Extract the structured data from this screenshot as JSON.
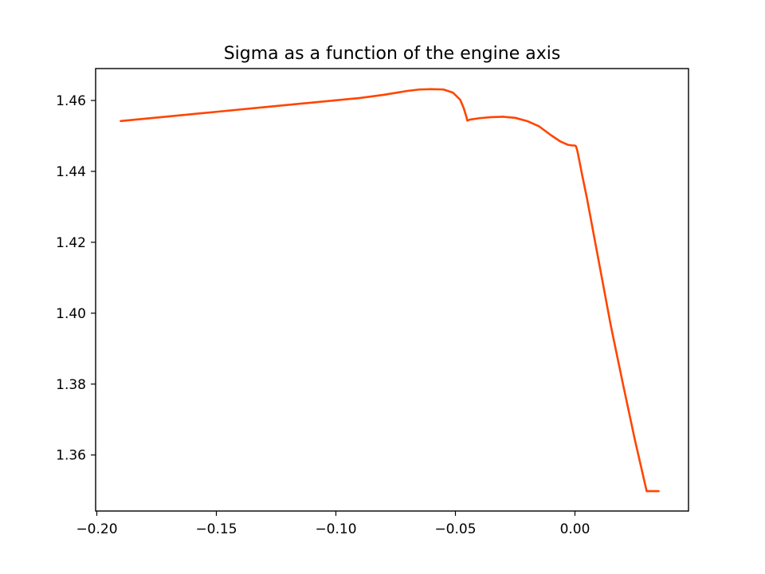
{
  "chart_data": {
    "type": "line",
    "title": "Sigma as a function of the engine axis",
    "xlabel": "",
    "ylabel": "",
    "xlim": [
      -0.2005,
      0.0475
    ],
    "ylim": [
      1.3442,
      1.469
    ],
    "xticks": [
      -0.2,
      -0.15,
      -0.1,
      -0.05,
      0.0
    ],
    "xtick_labels": [
      "−0.20",
      "−0.15",
      "−0.10",
      "−0.05",
      "0.00"
    ],
    "yticks": [
      1.36,
      1.38,
      1.4,
      1.42,
      1.44,
      1.46
    ],
    "ytick_labels": [
      "1.36",
      "1.38",
      "1.40",
      "1.42",
      "1.44",
      "1.46"
    ],
    "grid": false,
    "legend": "none",
    "colors": {
      "line": "#ff4500",
      "axes": "#000000",
      "background": "#ffffff"
    },
    "series": [
      {
        "x": [
          -0.19,
          -0.17,
          -0.15,
          -0.13,
          -0.11,
          -0.09,
          -0.08,
          -0.07,
          -0.065,
          -0.06,
          -0.055,
          -0.051,
          -0.048,
          -0.0465,
          -0.0455,
          -0.045,
          -0.044,
          -0.04,
          -0.035,
          -0.03,
          -0.025,
          -0.02,
          -0.015,
          -0.01,
          -0.006,
          -0.003,
          -0.001,
          0.0,
          0.0005,
          0.001,
          0.002,
          0.003,
          0.005,
          0.01,
          0.015,
          0.02,
          0.025,
          0.03,
          0.035
        ],
        "y": [
          1.4542,
          1.4555,
          1.4568,
          1.4581,
          1.4594,
          1.4607,
          1.4616,
          1.4627,
          1.4631,
          1.4632,
          1.4631,
          1.4622,
          1.4602,
          1.4578,
          1.4556,
          1.4543,
          1.4546,
          1.455,
          1.4553,
          1.4554,
          1.4551,
          1.4542,
          1.4527,
          1.4502,
          1.4484,
          1.4475,
          1.4473,
          1.4473,
          1.447,
          1.4458,
          1.4425,
          1.439,
          1.4325,
          1.4145,
          1.3965,
          1.3803,
          1.3645,
          1.3498,
          1.3498
        ]
      }
    ]
  }
}
